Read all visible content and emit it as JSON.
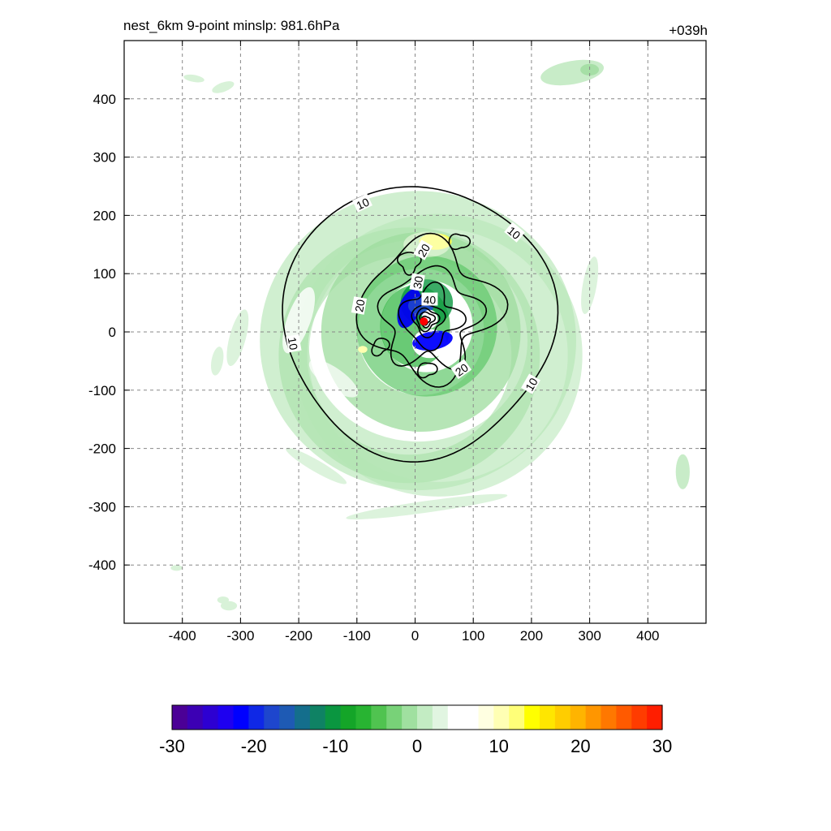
{
  "header": {
    "title_left": "nest_6km  9-point minslp: 981.6hPa",
    "title_right": "+039h"
  },
  "chart_data": {
    "type": "contour",
    "x_ticks": [
      -400,
      -300,
      -200,
      -100,
      0,
      100,
      200,
      300,
      400
    ],
    "y_ticks": [
      400,
      300,
      200,
      100,
      0,
      -100,
      -200,
      -300,
      -400
    ],
    "xlim": [
      -500,
      500
    ],
    "ylim": [
      -500,
      500
    ],
    "grid": true,
    "center_marker": {
      "x": 15,
      "y": 18,
      "color": "#ff0000"
    },
    "contour_labels": [
      {
        "text": "10",
        "x": -90,
        "y": 220,
        "rot": -25
      },
      {
        "text": "10",
        "x": 170,
        "y": 170,
        "rot": 40
      },
      {
        "text": "10",
        "x": -210,
        "y": -20,
        "rot": 80
      },
      {
        "text": "10",
        "x": 200,
        "y": -90,
        "rot": -60
      },
      {
        "text": "20",
        "x": 15,
        "y": 140,
        "rot": -60
      },
      {
        "text": "20",
        "x": -95,
        "y": 45,
        "rot": -80
      },
      {
        "text": "20",
        "x": 80,
        "y": -65,
        "rot": -35
      },
      {
        "text": "30",
        "x": 5,
        "y": 85,
        "rot": -80
      },
      {
        "text": "40",
        "x": 25,
        "y": 55,
        "rot": 0
      }
    ],
    "colorbar": {
      "ticks": [
        "-30",
        "-20",
        "-10",
        "0",
        "10",
        "20",
        "30"
      ],
      "min": -30,
      "max": 30,
      "colors": [
        "#4b0096",
        "#3c00b4",
        "#2d00d2",
        "#1e00f0",
        "#0000ff",
        "#0f28e6",
        "#1e46cd",
        "#1e5ab4",
        "#146e8c",
        "#0f8264",
        "#0a9640",
        "#14a528",
        "#28b432",
        "#50c350",
        "#78d278",
        "#a0e0a0",
        "#c3ecc3",
        "#e1f5e1",
        "#ffffff",
        "#ffffff",
        "#ffffe1",
        "#ffffb4",
        "#ffff78",
        "#ffff00",
        "#ffe600",
        "#ffcd00",
        "#ffb400",
        "#ff9600",
        "#ff7800",
        "#ff5a00",
        "#ff3c00",
        "#ff1e00"
      ]
    }
  }
}
